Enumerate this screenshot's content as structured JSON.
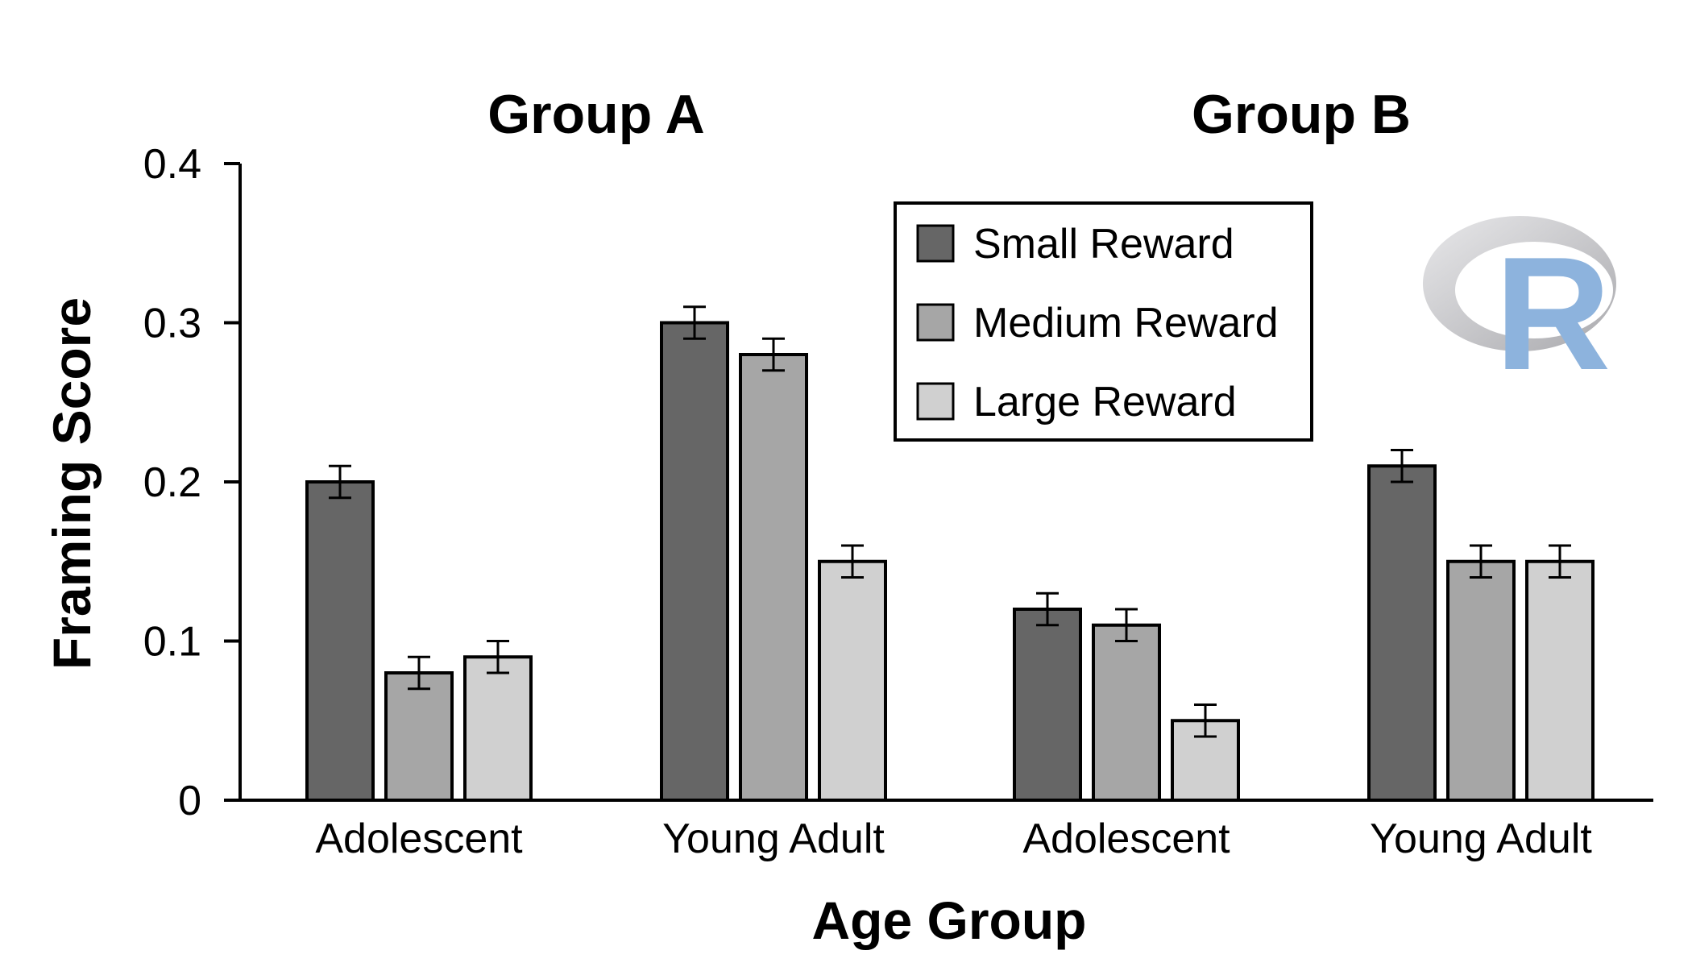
{
  "chart_data": {
    "type": "bar",
    "panels": [
      {
        "title": "Group A",
        "categories": [
          "Adolescent",
          "Young Adult"
        ]
      },
      {
        "title": "Group B",
        "categories": [
          "Adolescent",
          "Young Adult"
        ]
      }
    ],
    "categories": [
      "Adolescent",
      "Young Adult",
      "Adolescent",
      "Young Adult"
    ],
    "series": [
      {
        "name": "Small Reward",
        "color": "#666666",
        "values": [
          0.2,
          0.3,
          0.12,
          0.21
        ],
        "errors": [
          0.01,
          0.01,
          0.01,
          0.01
        ]
      },
      {
        "name": "Medium Reward",
        "color": "#a6a6a6",
        "values": [
          0.08,
          0.28,
          0.11,
          0.15
        ],
        "errors": [
          0.01,
          0.01,
          0.01,
          0.01
        ]
      },
      {
        "name": "Large Reward",
        "color": "#d0d0d0",
        "values": [
          0.09,
          0.15,
          0.05,
          0.15
        ],
        "errors": [
          0.01,
          0.01,
          0.01,
          0.01
        ]
      }
    ],
    "xlabel": "Age Group",
    "ylabel": "Framing Score",
    "ylim": [
      0,
      0.4
    ],
    "yticks": [
      "0",
      "0.1",
      "0.2",
      "0.3",
      "0.4"
    ],
    "grid": false,
    "legend_position": "top-center",
    "logo": "R"
  }
}
